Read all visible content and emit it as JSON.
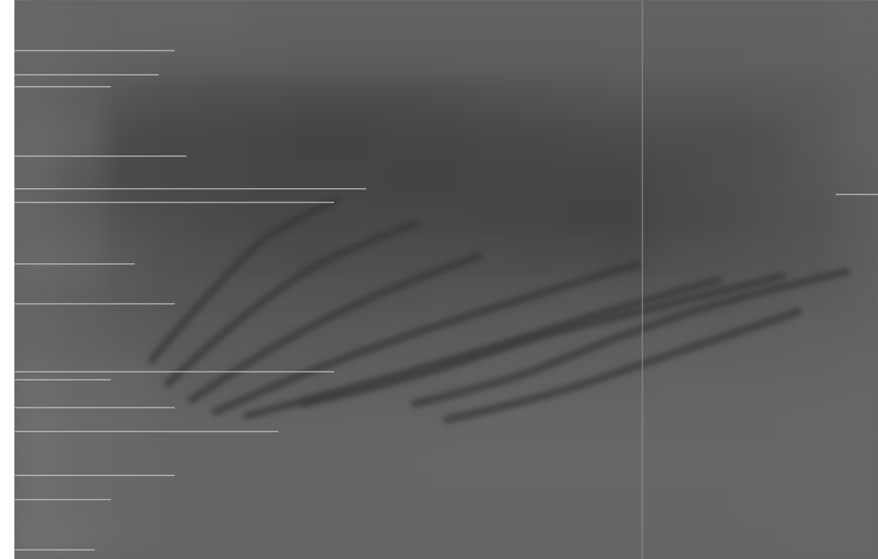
{
  "chart_data": {
    "type": "heatmap",
    "tick_labels": false,
    "xlim": [
      0,
      1083
    ],
    "ylim": [
      700,
      0
    ],
    "color_range": [
      0,
      255
    ],
    "cells": {
      "x_edges": [
        0,
        57,
        114,
        171,
        228,
        285,
        342,
        399,
        456,
        513,
        570,
        627,
        684,
        741,
        798,
        855,
        912,
        969,
        1026,
        1083
      ],
      "y_edges": [
        0,
        50,
        100,
        150,
        200,
        250,
        300,
        350,
        400,
        450,
        500,
        550,
        600,
        650,
        700
      ],
      "values": [
        [
          105,
          102,
          100,
          100,
          100,
          98,
          98,
          98,
          98,
          98,
          98,
          98,
          98,
          98,
          98,
          98,
          98,
          98,
          100
        ],
        [
          104,
          100,
          98,
          96,
          95,
          95,
          94,
          94,
          94,
          94,
          94,
          94,
          94,
          95,
          95,
          95,
          96,
          96,
          98
        ],
        [
          100,
          95,
          84,
          80,
          78,
          78,
          76,
          76,
          76,
          78,
          80,
          82,
          84,
          86,
          86,
          86,
          88,
          90,
          95
        ],
        [
          105,
          98,
          75,
          72,
          72,
          70,
          68,
          68,
          70,
          70,
          72,
          72,
          74,
          76,
          78,
          78,
          80,
          88,
          95
        ],
        [
          100,
          88,
          74,
          72,
          72,
          70,
          70,
          70,
          68,
          68,
          70,
          70,
          70,
          70,
          74,
          78,
          80,
          86,
          92
        ],
        [
          100,
          95,
          82,
          78,
          74,
          72,
          72,
          72,
          72,
          72,
          70,
          70,
          68,
          68,
          74,
          76,
          80,
          84,
          90
        ],
        [
          105,
          100,
          88,
          82,
          80,
          78,
          76,
          78,
          78,
          78,
          78,
          76,
          76,
          74,
          80,
          82,
          84,
          86,
          92
        ],
        [
          100,
          96,
          90,
          86,
          86,
          86,
          86,
          84,
          84,
          86,
          86,
          86,
          88,
          88,
          88,
          88,
          90,
          92,
          95
        ],
        [
          102,
          98,
          94,
          90,
          90,
          90,
          90,
          90,
          92,
          92,
          92,
          94,
          94,
          94,
          95,
          95,
          96,
          98,
          98
        ],
        [
          108,
          104,
          102,
          96,
          94,
          94,
          94,
          96,
          96,
          96,
          98,
          98,
          98,
          98,
          100,
          100,
          100,
          100,
          102
        ],
        [
          110,
          106,
          104,
          100,
          100,
          100,
          100,
          100,
          100,
          100,
          102,
          102,
          102,
          102,
          102,
          102,
          102,
          104,
          104
        ],
        [
          110,
          106,
          104,
          102,
          102,
          102,
          102,
          102,
          102,
          104,
          104,
          104,
          104,
          104,
          104,
          104,
          104,
          104,
          104
        ],
        [
          110,
          106,
          104,
          102,
          102,
          102,
          102,
          102,
          102,
          102,
          102,
          102,
          102,
          102,
          102,
          102,
          104,
          104,
          104
        ],
        [
          112,
          108,
          104,
          102,
          102,
          102,
          102,
          102,
          102,
          102,
          102,
          102,
          102,
          102,
          102,
          102,
          102,
          104,
          104
        ]
      ]
    },
    "series": [
      {
        "type": "line",
        "line_style": "thick",
        "color": "#383838",
        "x": [
          172,
          242,
          312,
          402
        ],
        "y": [
          450,
          370,
          300,
          250
        ]
      },
      {
        "type": "line",
        "line_style": "thick",
        "color": "#383838",
        "x": [
          192,
          282,
          382,
          502
        ],
        "y": [
          480,
          400,
          330,
          280
        ]
      },
      {
        "type": "line",
        "line_style": "thick",
        "color": "#383838",
        "x": [
          222,
          332,
          452,
          582
        ],
        "y": [
          500,
          430,
          370,
          320
        ]
      },
      {
        "type": "line",
        "line_style": "thick",
        "color": "#383838",
        "x": [
          252,
          382,
          522,
          682,
          782
        ],
        "y": [
          515,
          460,
          410,
          360,
          330
        ]
      },
      {
        "type": "line",
        "line_style": "thick",
        "color": "#383838",
        "x": [
          292,
          442,
          582,
          742,
          882
        ],
        "y": [
          520,
          480,
          440,
          390,
          350
        ]
      },
      {
        "type": "line",
        "line_style": "thick",
        "color": "#383838",
        "x": [
          362,
          502,
          662,
          822,
          962
        ],
        "y": [
          505,
          470,
          420,
          380,
          345
        ]
      },
      {
        "type": "line",
        "line_style": "thick",
        "color": "#383838",
        "x": [
          502,
          632,
          762,
          882,
          1042
        ],
        "y": [
          505,
          470,
          420,
          380,
          340
        ]
      },
      {
        "type": "line",
        "line_style": "thick",
        "color": "#383838",
        "x": [
          542,
          682,
          832,
          982
        ],
        "y": [
          525,
          490,
          440,
          390
        ]
      },
      {
        "type": "line",
        "line_style": "thin",
        "color": "#c4c4c4",
        "x": [
          0,
          200
        ],
        "y": [
          63,
          63
        ]
      },
      {
        "type": "line",
        "line_style": "thin",
        "color": "#c4c4c4",
        "x": [
          0,
          180
        ],
        "y": [
          93,
          93
        ]
      },
      {
        "type": "line",
        "line_style": "thin",
        "color": "#c4c4c4",
        "x": [
          0,
          120
        ],
        "y": [
          108,
          108
        ]
      },
      {
        "type": "line",
        "line_style": "thin",
        "color": "#c4c4c4",
        "x": [
          0,
          215
        ],
        "y": [
          195,
          195
        ]
      },
      {
        "type": "line",
        "line_style": "thin",
        "color": "#c4c4c4",
        "x": [
          0,
          440
        ],
        "y": [
          236,
          236
        ]
      },
      {
        "type": "line",
        "line_style": "thin",
        "color": "#c4c4c4",
        "x": [
          0,
          400
        ],
        "y": [
          253,
          253
        ]
      },
      {
        "type": "line",
        "line_style": "thin",
        "color": "#c4c4c4",
        "x": [
          0,
          150
        ],
        "y": [
          330,
          330
        ]
      },
      {
        "type": "line",
        "line_style": "thin",
        "color": "#c4c4c4",
        "x": [
          0,
          200
        ],
        "y": [
          380,
          380
        ]
      },
      {
        "type": "line",
        "line_style": "thin",
        "color": "#c4c4c4",
        "x": [
          0,
          400
        ],
        "y": [
          465,
          465
        ]
      },
      {
        "type": "line",
        "line_style": "thin",
        "color": "#c4c4c4",
        "x": [
          0,
          120
        ],
        "y": [
          475,
          475
        ]
      },
      {
        "type": "line",
        "line_style": "thin",
        "color": "#c4c4c4",
        "x": [
          0,
          200
        ],
        "y": [
          510,
          510
        ]
      },
      {
        "type": "line",
        "line_style": "thin",
        "color": "#c4c4c4",
        "x": [
          0,
          330
        ],
        "y": [
          540,
          540
        ]
      },
      {
        "type": "line",
        "line_style": "thin",
        "color": "#c4c4c4",
        "x": [
          0,
          200
        ],
        "y": [
          595,
          595
        ]
      },
      {
        "type": "line",
        "line_style": "thin",
        "color": "#c4c4c4",
        "x": [
          0,
          120
        ],
        "y": [
          625,
          625
        ]
      },
      {
        "type": "line",
        "line_style": "thin",
        "color": "#c4c4c4",
        "x": [
          0,
          100
        ],
        "y": [
          688,
          688
        ]
      },
      {
        "type": "line",
        "line_style": "thin",
        "color": "#c4c4c4",
        "x": [
          1030,
          1083
        ],
        "y": [
          243,
          243
        ]
      },
      {
        "type": "line",
        "line_style": "thin",
        "color": "#8c8c8c",
        "x": [
          787,
          787
        ],
        "y": [
          0,
          700
        ]
      }
    ]
  }
}
